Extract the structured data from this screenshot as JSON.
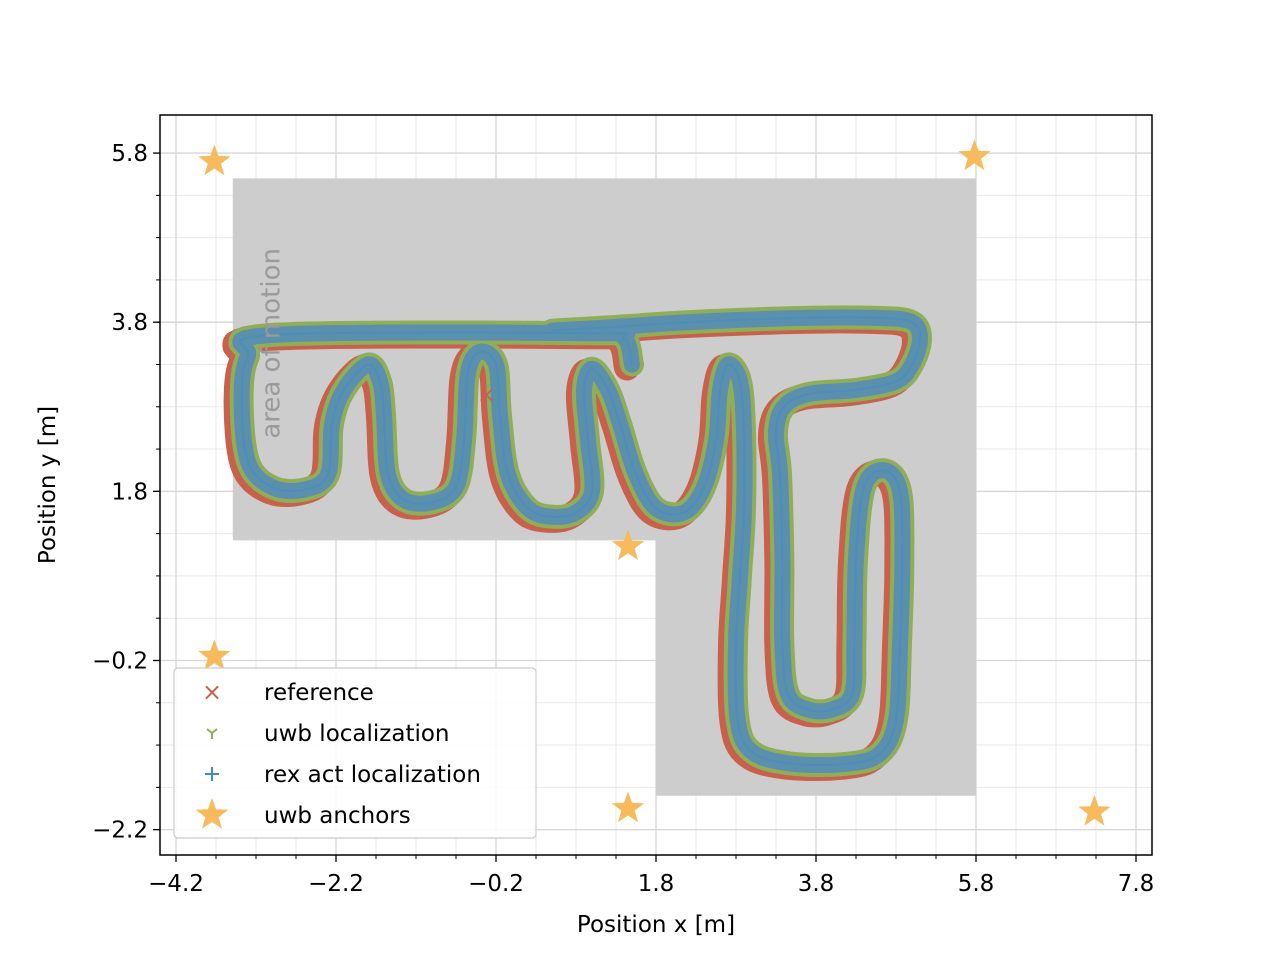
{
  "chart_data": {
    "type": "scatter",
    "title": "",
    "xlabel": "Position x [m]",
    "ylabel": "Position y [m]",
    "xlim": [
      -4.4,
      8.0
    ],
    "ylim": [
      -2.5,
      6.25
    ],
    "xticks": [
      -4.2,
      -2.2,
      -0.2,
      1.8,
      3.8,
      5.8,
      7.8
    ],
    "xtick_labels": [
      "−4.2",
      "−2.2",
      "−0.2",
      "1.8",
      "3.8",
      "5.8",
      "7.8"
    ],
    "yticks": [
      -2.2,
      -0.2,
      1.8,
      3.8,
      5.8
    ],
    "ytick_labels": [
      "−2.2",
      "−0.2",
      "1.8",
      "3.8",
      "5.8"
    ],
    "grid": true,
    "minor_grid": true,
    "legend_position": "bottom-left",
    "annotations": [
      {
        "text": "area of motion",
        "x": -3.0,
        "y": 3.55,
        "rotation": 90
      }
    ],
    "area_of_motion": [
      [
        -3.49,
        5.5
      ],
      [
        5.8,
        5.5
      ],
      [
        5.8,
        -1.8
      ],
      [
        1.8,
        -1.8
      ],
      [
        1.8,
        1.22
      ],
      [
        -3.49,
        1.22
      ]
    ],
    "anchors": [
      [
        -3.72,
        5.7
      ],
      [
        5.78,
        5.76
      ],
      [
        1.45,
        1.15
      ],
      [
        -3.72,
        -0.15
      ],
      [
        1.45,
        -1.95
      ],
      [
        7.28,
        -1.99
      ]
    ],
    "trajectory": [
      [
        1.5,
        3.3
      ],
      [
        1.4,
        3.62
      ],
      [
        1.0,
        3.67
      ],
      [
        -3.0,
        3.65
      ],
      [
        -3.3,
        3.4
      ],
      [
        -3.38,
        2.9
      ],
      [
        -3.3,
        2.15
      ],
      [
        -3.0,
        1.85
      ],
      [
        -2.6,
        1.82
      ],
      [
        -2.3,
        2.0
      ],
      [
        -2.25,
        2.6
      ],
      [
        -2.1,
        3.0
      ],
      [
        -1.8,
        3.3
      ],
      [
        -1.65,
        3.1
      ],
      [
        -1.6,
        2.7
      ],
      [
        -1.55,
        2.0
      ],
      [
        -1.35,
        1.7
      ],
      [
        -1.0,
        1.67
      ],
      [
        -0.7,
        1.85
      ],
      [
        -0.6,
        2.4
      ],
      [
        -0.55,
        3.2
      ],
      [
        -0.4,
        3.45
      ],
      [
        -0.2,
        3.3
      ],
      [
        -0.15,
        2.7
      ],
      [
        -0.05,
        2.0
      ],
      [
        0.2,
        1.6
      ],
      [
        0.5,
        1.5
      ],
      [
        0.8,
        1.55
      ],
      [
        1.0,
        1.8
      ],
      [
        0.95,
        2.4
      ],
      [
        0.9,
        3.0
      ],
      [
        1.0,
        3.25
      ],
      [
        1.2,
        3.0
      ],
      [
        1.35,
        2.6
      ],
      [
        1.55,
        2.0
      ],
      [
        1.8,
        1.6
      ],
      [
        2.15,
        1.55
      ],
      [
        2.4,
        1.85
      ],
      [
        2.55,
        2.4
      ],
      [
        2.6,
        3.0
      ],
      [
        2.7,
        3.3
      ],
      [
        2.85,
        3.1
      ],
      [
        2.9,
        2.5
      ],
      [
        2.9,
        1.6
      ],
      [
        2.85,
        0.8
      ],
      [
        2.8,
        0.0
      ],
      [
        2.82,
        -0.9
      ],
      [
        3.0,
        -1.28
      ],
      [
        3.5,
        -1.42
      ],
      [
        4.2,
        -1.42
      ],
      [
        4.6,
        -1.3
      ],
      [
        4.8,
        -0.9
      ],
      [
        4.85,
        0.0
      ],
      [
        4.88,
        1.0
      ],
      [
        4.85,
        1.8
      ],
      [
        4.65,
        2.05
      ],
      [
        4.4,
        1.85
      ],
      [
        4.3,
        1.0
      ],
      [
        4.28,
        0.0
      ],
      [
        4.25,
        -0.6
      ],
      [
        4.0,
        -0.78
      ],
      [
        3.7,
        -0.78
      ],
      [
        3.45,
        -0.6
      ],
      [
        3.38,
        0.0
      ],
      [
        3.38,
        1.0
      ],
      [
        3.35,
        2.0
      ],
      [
        3.3,
        2.5
      ],
      [
        3.4,
        2.8
      ],
      [
        3.7,
        2.95
      ],
      [
        4.3,
        3.0
      ],
      [
        4.8,
        3.1
      ],
      [
        5.0,
        3.3
      ],
      [
        5.1,
        3.6
      ],
      [
        5.0,
        3.8
      ],
      [
        4.6,
        3.85
      ],
      [
        3.6,
        3.85
      ],
      [
        2.2,
        3.8
      ],
      [
        1.4,
        3.75
      ],
      [
        0.5,
        3.7
      ]
    ],
    "series": [
      {
        "name": "reference",
        "marker": "x",
        "color": "#c8604b"
      },
      {
        "name": "uwb localization",
        "marker": "tri_down",
        "color": "#8fae57"
      },
      {
        "name": "rex act localization",
        "marker": "plus",
        "color": "#3f8cc2"
      },
      {
        "name": "uwb anchors",
        "marker": "star",
        "color": "#f7bb5d"
      }
    ]
  }
}
